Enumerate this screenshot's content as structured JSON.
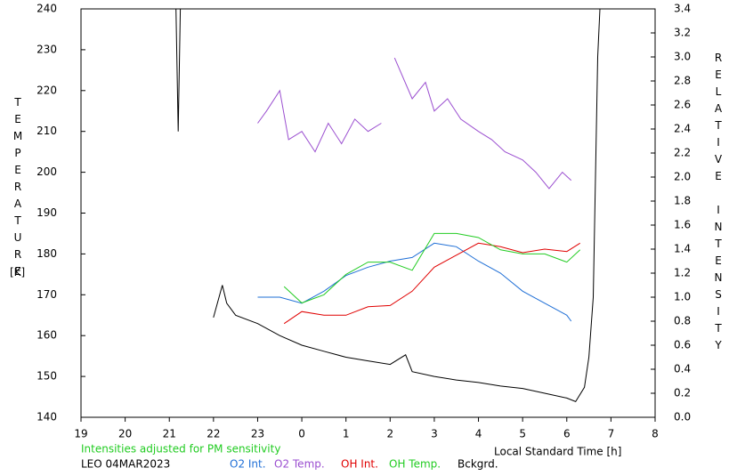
{
  "chart_data": {
    "type": "line",
    "y_label": "TEMPERATURE",
    "y_unit": "[K]",
    "y2_label": "RELATIVE INTENSITY",
    "x_label": "Local Standard Time [h]",
    "note": "Intensities adjusted for PM sensitivity",
    "station": "LEO 04MAR2023",
    "xlim": [
      19,
      32
    ],
    "xticks": [
      19,
      20,
      21,
      22,
      23,
      {
        "value": 24,
        "label": "0"
      },
      {
        "value": 25,
        "label": "1"
      },
      {
        "value": 26,
        "label": "2"
      },
      {
        "value": 27,
        "label": "3"
      },
      {
        "value": 28,
        "label": "4"
      },
      {
        "value": 29,
        "label": "5"
      },
      {
        "value": 30,
        "label": "6"
      },
      {
        "value": 31,
        "label": "7"
      },
      {
        "value": 32,
        "label": "8"
      }
    ],
    "ylim": [
      140,
      240
    ],
    "yticks": [
      140,
      150,
      160,
      170,
      180,
      190,
      200,
      210,
      220,
      230,
      240
    ],
    "y2lim": [
      0,
      3.4
    ],
    "y2ticks": [
      {
        "value": 0,
        "label": "0.0"
      },
      0.2,
      0.4,
      0.6,
      0.8,
      {
        "value": 1,
        "label": "1.0"
      },
      1.2,
      1.4,
      1.6,
      1.8,
      {
        "value": 2,
        "label": "2.0"
      },
      2.2,
      2.4,
      2.6,
      2.8,
      {
        "value": 3,
        "label": "3.0"
      },
      3.2,
      3.4
    ],
    "series": [
      {
        "name": "O2 Int.",
        "color": "#1f6fd6",
        "axis": "y2",
        "x": [
          23,
          23.5,
          24,
          24.5,
          25,
          25.5,
          26,
          26.5,
          27,
          27.5,
          28,
          28.5,
          29,
          29.5,
          30,
          30.1
        ],
        "values": [
          1.0,
          1.0,
          0.95,
          1.05,
          1.18,
          1.25,
          1.3,
          1.33,
          1.45,
          1.42,
          1.3,
          1.2,
          1.05,
          0.95,
          0.85,
          0.8
        ]
      },
      {
        "name": "O2 Temp.",
        "color": "#9b4fd0",
        "axis": "y",
        "x": [
          23,
          23.2,
          23.5,
          23.7,
          24,
          24.3,
          24.6,
          24.9,
          25.2,
          25.5,
          25.8,
          25.9,
          26.1,
          26.5,
          26.8,
          27,
          27.3,
          27.6,
          28,
          28.3,
          28.6,
          29,
          29.3,
          29.6,
          29.9,
          30.1
        ],
        "values": [
          212,
          215,
          220,
          208,
          210,
          205,
          212,
          207,
          213,
          210,
          212,
          null,
          228,
          218,
          222,
          215,
          218,
          213,
          210,
          208,
          205,
          203,
          200,
          196,
          200,
          198
        ]
      },
      {
        "name": "OH Int.",
        "color": "#e00000",
        "axis": "y2",
        "x": [
          23.6,
          24,
          24.5,
          25,
          25.5,
          26,
          26.5,
          27,
          27.5,
          28,
          28.5,
          29,
          29.5,
          30,
          30.3
        ],
        "values": [
          0.78,
          0.88,
          0.85,
          0.85,
          0.92,
          0.93,
          1.05,
          1.25,
          1.35,
          1.45,
          1.42,
          1.37,
          1.4,
          1.38,
          1.45
        ]
      },
      {
        "name": "OH Temp.",
        "color": "#22cc22",
        "axis": "y",
        "x": [
          23.6,
          24,
          24.5,
          25,
          25.5,
          26,
          26.5,
          27,
          27.5,
          28,
          28.5,
          29,
          29.5,
          30,
          30.3
        ],
        "values": [
          172,
          168,
          170,
          175,
          178,
          178,
          176,
          185,
          185,
          184,
          181,
          180,
          180,
          178,
          181
        ]
      },
      {
        "name": "Bckgrd.",
        "color": "#000000",
        "axis": "y2",
        "x": [
          21.15,
          21.2,
          21.25,
          21.3,
          22,
          22.2,
          22.3,
          22.5,
          23,
          23.5,
          24,
          24.5,
          25,
          25.5,
          26,
          26.35,
          26.5,
          27,
          27.5,
          28,
          28.5,
          29,
          29.5,
          30,
          30.2,
          30.4,
          30.5,
          30.6,
          30.65,
          30.7,
          30.75
        ],
        "values": [
          3.4,
          2.38,
          3.4,
          null,
          0.83,
          1.1,
          0.95,
          0.85,
          0.78,
          0.68,
          0.6,
          0.55,
          0.5,
          0.47,
          0.44,
          0.52,
          0.38,
          0.34,
          0.31,
          0.29,
          0.26,
          0.24,
          0.2,
          0.16,
          0.13,
          0.25,
          0.5,
          1.0,
          2.0,
          3.0,
          3.4
        ]
      }
    ]
  }
}
